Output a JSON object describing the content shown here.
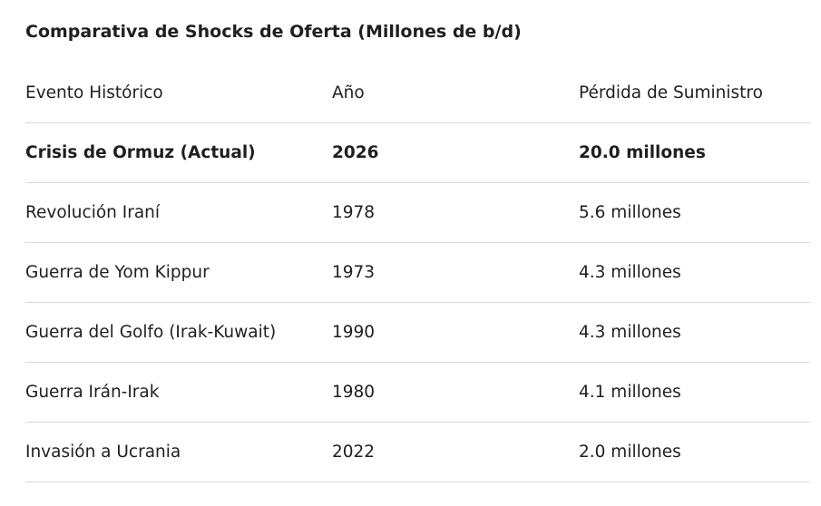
{
  "table": {
    "title": "Comparativa de Shocks de Oferta (Millones de b/d)",
    "header": [
      "Evento Histórico",
      "Año",
      "Pérdida de Suministro"
    ],
    "rows": [
      [
        "Crisis de Ormuz (Actual)",
        "2026",
        "20.0 millones"
      ],
      [
        "Revolución Iraní",
        "1978",
        "5.6 millones"
      ],
      [
        "Guerra de Yom Kippur",
        "1973",
        "4.3 millones"
      ],
      [
        "Guerra del Golfo (Irak-Kuwait)",
        "1990",
        "4.3 millones"
      ],
      [
        "Guerra Irán-Irak",
        "1980",
        "4.1 millones"
      ],
      [
        "Invasión a Ucrania",
        "2022",
        "2.0 millones"
      ]
    ]
  }
}
